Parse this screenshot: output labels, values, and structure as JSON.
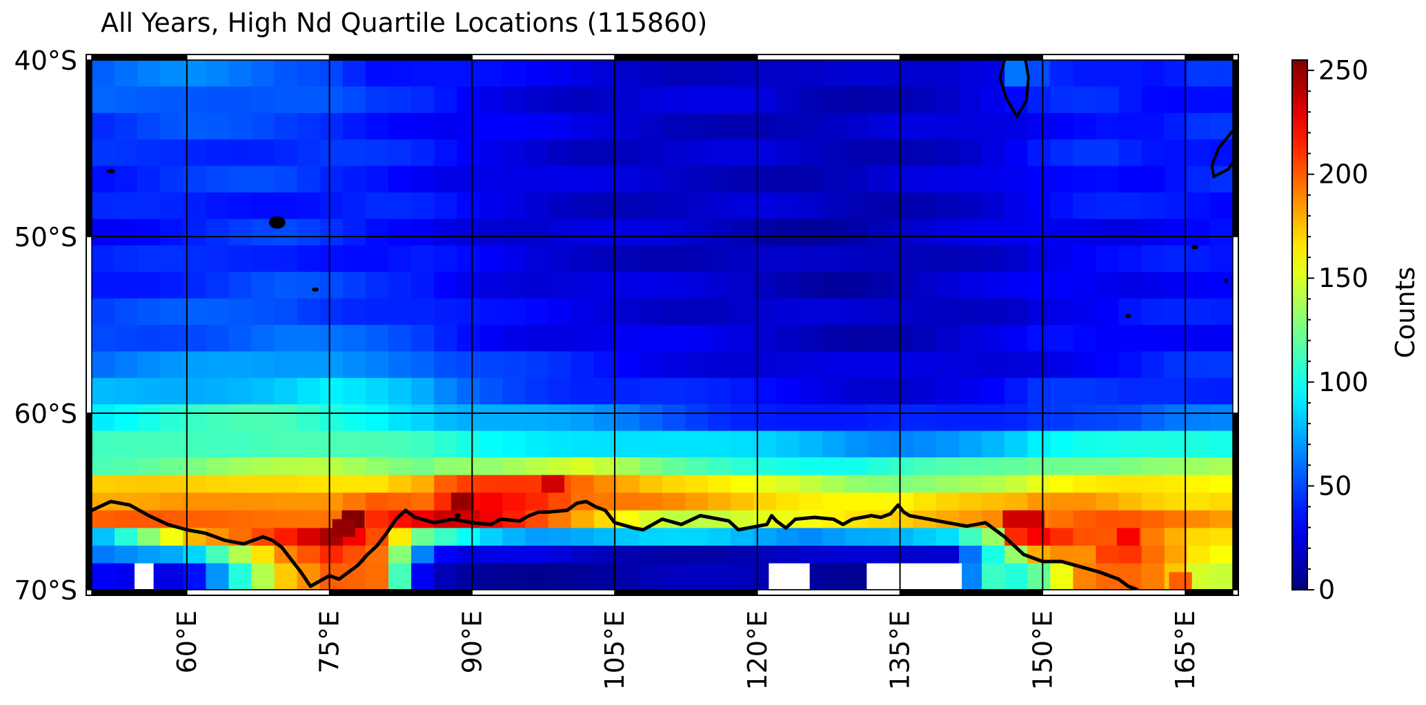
{
  "chart_data": {
    "type": "heatmap",
    "title": "All Years, High Nd Quartile Locations (115860)",
    "xlabel": "",
    "ylabel": "",
    "x_ticks": [
      {
        "value": 60,
        "label": "60°E"
      },
      {
        "value": 75,
        "label": "75°E"
      },
      {
        "value": 90,
        "label": "90°E"
      },
      {
        "value": 105,
        "label": "105°E"
      },
      {
        "value": 120,
        "label": "120°E"
      },
      {
        "value": 135,
        "label": "135°E"
      },
      {
        "value": 150,
        "label": "150°E"
      },
      {
        "value": 165,
        "label": "165°E"
      }
    ],
    "y_ticks": [
      {
        "value": -40,
        "label": "40°S"
      },
      {
        "value": -50,
        "label": "50°S"
      },
      {
        "value": -60,
        "label": "60°S"
      },
      {
        "value": -70,
        "label": "70°S"
      }
    ],
    "xlim": [
      50,
      170
    ],
    "ylim": [
      -70,
      -40
    ],
    "grid": true,
    "colorbar": {
      "label": "Counts",
      "range": [
        0,
        255
      ],
      "ticks": [
        0,
        50,
        100,
        150,
        200,
        250
      ],
      "colormap": "jet"
    },
    "row_lat_edges": [
      -40,
      -41.5,
      -43,
      -44.5,
      -46,
      -47.5,
      -49,
      -50.5,
      -52,
      -53.5,
      -55,
      -56.5,
      -58,
      -59.5,
      -61,
      -62.5,
      -63.5,
      -64.5,
      -65.5,
      -66.5,
      -67.5,
      -68.5,
      -70
    ],
    "column_keypoints_lon": [
      50,
      60,
      70,
      75,
      80,
      85,
      88,
      92,
      97,
      102,
      110,
      115,
      120,
      125,
      130,
      135,
      140,
      145,
      148,
      150,
      155,
      158,
      160,
      163,
      166,
      170
    ],
    "row_profiles": [
      [
        55,
        62,
        55,
        55,
        40,
        38,
        35,
        30,
        25,
        22,
        20,
        20,
        20,
        15,
        15,
        15,
        20,
        30,
        80,
        50,
        40,
        38,
        35,
        30,
        40,
        40
      ],
      [
        55,
        60,
        55,
        50,
        40,
        38,
        35,
        30,
        25,
        20,
        20,
        20,
        20,
        15,
        15,
        18,
        20,
        25,
        30,
        35,
        40,
        40,
        35,
        35,
        40,
        40
      ],
      [
        45,
        50,
        45,
        45,
        40,
        35,
        30,
        30,
        25,
        20,
        18,
        18,
        18,
        15,
        15,
        18,
        20,
        25,
        30,
        35,
        40,
        40,
        35,
        35,
        40,
        40
      ],
      [
        40,
        45,
        45,
        45,
        40,
        35,
        30,
        28,
        25,
        20,
        18,
        18,
        18,
        15,
        15,
        18,
        20,
        25,
        30,
        35,
        40,
        40,
        35,
        35,
        40,
        40
      ],
      [
        40,
        45,
        45,
        40,
        40,
        35,
        30,
        28,
        22,
        20,
        18,
        18,
        18,
        15,
        15,
        18,
        20,
        25,
        30,
        35,
        40,
        40,
        35,
        35,
        40,
        40
      ],
      [
        35,
        40,
        40,
        40,
        40,
        35,
        30,
        25,
        22,
        20,
        18,
        18,
        18,
        15,
        12,
        15,
        20,
        25,
        30,
        30,
        35,
        35,
        35,
        35,
        35,
        35
      ],
      [
        35,
        40,
        45,
        40,
        35,
        35,
        30,
        25,
        20,
        20,
        18,
        18,
        15,
        12,
        12,
        15,
        18,
        22,
        25,
        28,
        30,
        30,
        30,
        35,
        35,
        35
      ],
      [
        35,
        40,
        45,
        40,
        35,
        35,
        30,
        25,
        20,
        20,
        18,
        15,
        15,
        12,
        12,
        15,
        18,
        22,
        25,
        28,
        30,
        30,
        30,
        35,
        35,
        35
      ],
      [
        40,
        45,
        50,
        45,
        40,
        40,
        35,
        30,
        25,
        22,
        20,
        18,
        18,
        15,
        12,
        15,
        18,
        22,
        25,
        28,
        30,
        30,
        30,
        35,
        35,
        35
      ],
      [
        45,
        50,
        55,
        50,
        45,
        40,
        35,
        30,
        28,
        25,
        22,
        20,
        20,
        18,
        15,
        15,
        18,
        22,
        25,
        30,
        30,
        30,
        35,
        35,
        35,
        35
      ],
      [
        50,
        55,
        60,
        55,
        50,
        45,
        40,
        35,
        30,
        28,
        25,
        22,
        20,
        18,
        15,
        15,
        18,
        22,
        25,
        30,
        30,
        30,
        35,
        35,
        35,
        35
      ],
      [
        60,
        65,
        70,
        75,
        70,
        60,
        50,
        45,
        40,
        35,
        30,
        28,
        25,
        22,
        20,
        20,
        22,
        25,
        28,
        30,
        35,
        35,
        35,
        40,
        40,
        40
      ],
      [
        75,
        80,
        85,
        90,
        80,
        70,
        60,
        55,
        50,
        45,
        40,
        35,
        30,
        28,
        25,
        25,
        28,
        30,
        35,
        40,
        40,
        40,
        40,
        45,
        45,
        45
      ],
      [
        95,
        105,
        110,
        105,
        100,
        90,
        80,
        75,
        70,
        65,
        55,
        50,
        45,
        40,
        35,
        35,
        35,
        40,
        45,
        50,
        55,
        55,
        55,
        60,
        60,
        60
      ],
      [
        105,
        115,
        120,
        115,
        110,
        105,
        100,
        95,
        95,
        95,
        90,
        85,
        80,
        75,
        70,
        70,
        75,
        80,
        85,
        90,
        95,
        95,
        100,
        100,
        105,
        105
      ],
      [
        120,
        125,
        135,
        140,
        135,
        130,
        140,
        135,
        140,
        145,
        120,
        115,
        110,
        105,
        100,
        105,
        110,
        115,
        120,
        125,
        130,
        130,
        135,
        135,
        135,
        135
      ],
      [
        165,
        170,
        175,
        170,
        165,
        175,
        200,
        205,
        210,
        200,
        175,
        165,
        150,
        140,
        130,
        130,
        140,
        145,
        150,
        155,
        160,
        160,
        160,
        160,
        160,
        160
      ],
      [
        185,
        190,
        180,
        180,
        200,
        200,
        225,
        230,
        215,
        190,
        185,
        180,
        175,
        170,
        165,
        160,
        165,
        170,
        175,
        185,
        190,
        185,
        180,
        175,
        170,
        170
      ],
      [
        195,
        195,
        200,
        200,
        215,
        225,
        235,
        220,
        200,
        180,
        150,
        145,
        150,
        150,
        160,
        170,
        185,
        195,
        200,
        195,
        200,
        200,
        195,
        190,
        185,
        180
      ],
      [
        70,
        180,
        210,
        240,
        200,
        120,
        110,
        90,
        75,
        75,
        80,
        80,
        75,
        70,
        80,
        80,
        85,
        130,
        235,
        215,
        200,
        205,
        205,
        190,
        175,
        170
      ],
      [
        60,
        70,
        190,
        220,
        200,
        60,
        20,
        20,
        20,
        15,
        15,
        15,
        15,
        15,
        15,
        15,
        20,
        110,
        150,
        195,
        190,
        220,
        200,
        185,
        160,
        150
      ],
      [
        30,
        30,
        170,
        195,
        190,
        20,
        10,
        10,
        10,
        10,
        10,
        10,
        10,
        10,
        10,
        10,
        20,
        110,
        95,
        120,
        195,
        195,
        200,
        190,
        155,
        150
      ],
      [
        10,
        15,
        25,
        100,
        115,
        10,
        5,
        5,
        5,
        5,
        5,
        5,
        5,
        5,
        5,
        5,
        10,
        30,
        20,
        25,
        75,
        100,
        110,
        190,
        175,
        170
      ]
    ],
    "hot_cells": [
      {
        "lon": 77.5,
        "lat": -66.0,
        "value": 255
      },
      {
        "lon": 76.5,
        "lat": -66.5,
        "value": 250
      },
      {
        "lon": 89.0,
        "lat": -65.0,
        "value": 250
      },
      {
        "lon": 98.5,
        "lat": -64.0,
        "value": 235
      },
      {
        "lon": 147.0,
        "lat": -66.0,
        "value": 235
      },
      {
        "lon": 149.0,
        "lat": -66.0,
        "value": 235
      },
      {
        "lon": 159.0,
        "lat": -67.0,
        "value": 225
      },
      {
        "lon": 164.5,
        "lat": -69.5,
        "value": 200
      }
    ],
    "missing_cells": [
      {
        "lon_range": [
          54.5,
          56.5
        ],
        "lat_range": [
          -68.5,
          -70
        ]
      },
      {
        "lon_range": [
          121.2,
          125.5
        ],
        "lat_range": [
          -68.5,
          -70
        ]
      },
      {
        "lon_range": [
          131.5,
          135.0
        ],
        "lat_range": [
          -68.5,
          -70
        ]
      },
      {
        "lon_range": [
          135.0,
          141.5
        ],
        "lat_range": [
          -68.5,
          -70
        ]
      }
    ],
    "coastline": [
      [
        50,
        -65.5
      ],
      [
        52,
        -65.0
      ],
      [
        54,
        -65.2
      ],
      [
        56,
        -65.8
      ],
      [
        58,
        -66.3
      ],
      [
        60,
        -66.6
      ],
      [
        62,
        -66.8
      ],
      [
        64,
        -67.2
      ],
      [
        66,
        -67.4
      ],
      [
        68,
        -67.0
      ],
      [
        69,
        -67.2
      ],
      [
        70,
        -67.6
      ],
      [
        71,
        -68.3
      ],
      [
        72,
        -69.0
      ],
      [
        73,
        -69.8
      ],
      [
        74,
        -69.5
      ],
      [
        75,
        -69.2
      ],
      [
        76,
        -69.4
      ],
      [
        77,
        -69.0
      ],
      [
        78,
        -68.6
      ],
      [
        79,
        -68.0
      ],
      [
        80,
        -67.5
      ],
      [
        81,
        -66.8
      ],
      [
        82,
        -66.0
      ],
      [
        83,
        -65.5
      ],
      [
        84,
        -65.9
      ],
      [
        86,
        -66.2
      ],
      [
        88,
        -66.0
      ],
      [
        90,
        -66.2
      ],
      [
        92,
        -66.3
      ],
      [
        93,
        -66.0
      ],
      [
        95,
        -66.1
      ],
      [
        96,
        -65.8
      ],
      [
        97,
        -65.6
      ],
      [
        98,
        -65.6
      ],
      [
        100,
        -65.5
      ],
      [
        101,
        -65.1
      ],
      [
        102,
        -65.0
      ],
      [
        103,
        -65.3
      ],
      [
        104,
        -65.5
      ],
      [
        105,
        -66.2
      ],
      [
        107,
        -66.5
      ],
      [
        108,
        -66.6
      ],
      [
        109,
        -66.3
      ],
      [
        110,
        -66.0
      ],
      [
        112,
        -66.3
      ],
      [
        114,
        -65.8
      ],
      [
        115,
        -65.9
      ],
      [
        117,
        -66.1
      ],
      [
        118,
        -66.6
      ],
      [
        119,
        -66.5
      ],
      [
        120,
        -66.4
      ],
      [
        121,
        -66.3
      ],
      [
        121.5,
        -65.8
      ],
      [
        122,
        -66.1
      ],
      [
        123,
        -66.5
      ],
      [
        124,
        -66.0
      ],
      [
        126,
        -65.9
      ],
      [
        128,
        -66.0
      ],
      [
        129,
        -66.3
      ],
      [
        130,
        -66.0
      ],
      [
        132,
        -65.8
      ],
      [
        133,
        -65.9
      ],
      [
        134,
        -65.7
      ],
      [
        134.8,
        -65.2
      ],
      [
        135.4,
        -65.6
      ],
      [
        136,
        -65.8
      ],
      [
        138,
        -66.0
      ],
      [
        140,
        -66.2
      ],
      [
        142,
        -66.4
      ],
      [
        144,
        -66.2
      ],
      [
        145,
        -66.6
      ],
      [
        146,
        -67.0
      ],
      [
        147,
        -67.5
      ],
      [
        148,
        -68.0
      ],
      [
        149,
        -68.2
      ],
      [
        150,
        -68.4
      ],
      [
        152,
        -68.4
      ],
      [
        154,
        -68.7
      ],
      [
        156,
        -69.0
      ],
      [
        158,
        -69.4
      ],
      [
        159,
        -69.8
      ],
      [
        160,
        -70.0
      ]
    ]
  }
}
